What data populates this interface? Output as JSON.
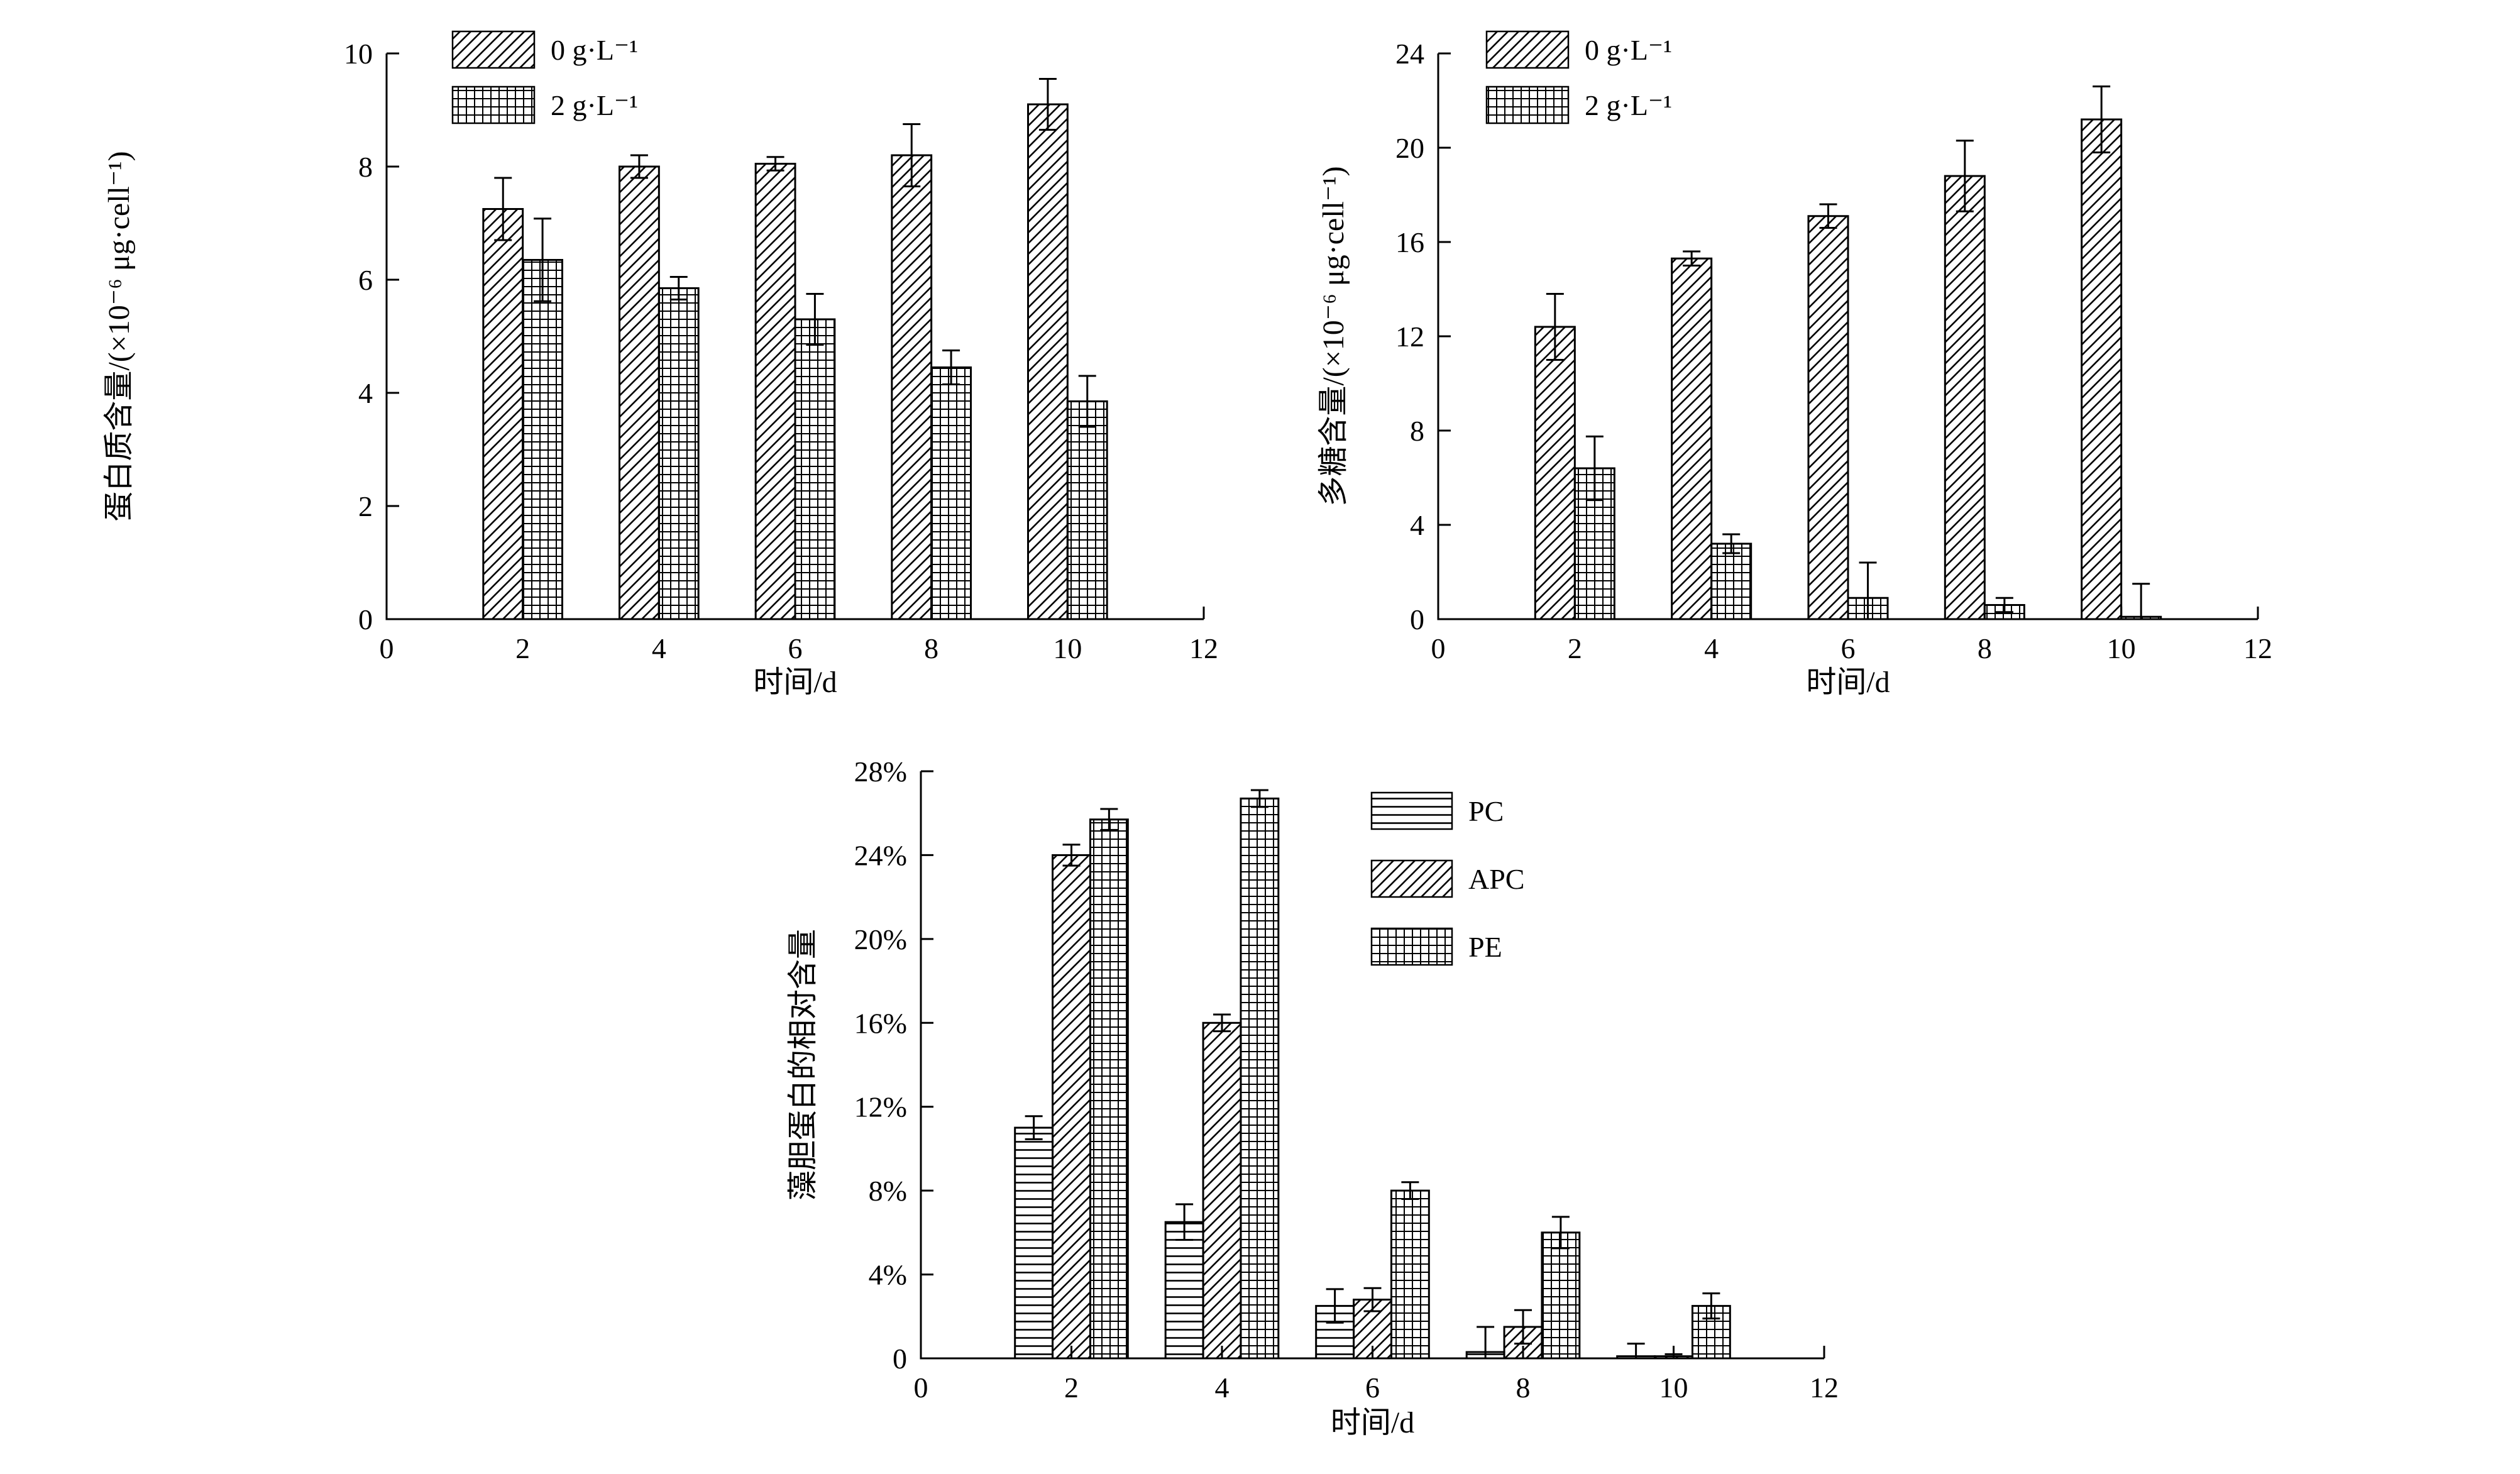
{
  "figure": {
    "background": "#ffffff"
  },
  "colors": {
    "axis": "#000000",
    "bar_fill": "#ffffff",
    "hatch": "#000000"
  },
  "chart_data": [
    {
      "type": "bar",
      "title": "",
      "xlabel": "时间/d",
      "ylabel": "蛋白质含量/(×10⁻⁶ μg·cell⁻¹)",
      "xlim": [
        0,
        12
      ],
      "ylim": [
        0,
        10
      ],
      "xticks": {
        "values": [
          0,
          2,
          4,
          6,
          8,
          10,
          12
        ],
        "labels": [
          "0",
          "2",
          "4",
          "6",
          "8",
          "10",
          "12"
        ]
      },
      "yticks": {
        "values": [
          0,
          2,
          4,
          6,
          8,
          10
        ],
        "labels": [
          "0",
          "2",
          "4",
          "6",
          "8",
          "10"
        ]
      },
      "categories": [
        2,
        4,
        6,
        8,
        10
      ],
      "grid": false,
      "legend_position": "top-left",
      "series": [
        {
          "name": "0 g·L⁻¹",
          "pattern": "diag",
          "values": [
            7.25,
            8.0,
            8.05,
            8.2,
            9.1
          ],
          "errors": [
            0.55,
            0.2,
            0.12,
            0.55,
            0.45
          ]
        },
        {
          "name": "2 g·L⁻¹",
          "pattern": "grid",
          "values": [
            6.35,
            5.85,
            5.3,
            4.45,
            3.85
          ],
          "errors": [
            0.73,
            0.2,
            0.45,
            0.3,
            0.45
          ]
        }
      ]
    },
    {
      "type": "bar",
      "title": "",
      "xlabel": "时间/d",
      "ylabel": "多糖含量/(×10⁻⁶ μg·cell⁻¹)",
      "xlim": [
        0,
        12
      ],
      "ylim": [
        0,
        24
      ],
      "xticks": {
        "values": [
          0,
          2,
          4,
          6,
          8,
          10,
          12
        ],
        "labels": [
          "0",
          "2",
          "4",
          "6",
          "8",
          "10",
          "12"
        ]
      },
      "yticks": {
        "values": [
          0,
          4,
          8,
          12,
          16,
          20,
          24
        ],
        "labels": [
          "0",
          "4",
          "8",
          "12",
          "16",
          "20",
          "24"
        ]
      },
      "categories": [
        2,
        4,
        6,
        8,
        10
      ],
      "grid": false,
      "legend_position": "top-left",
      "series": [
        {
          "name": "0 g·L⁻¹",
          "pattern": "diag",
          "values": [
            12.4,
            15.3,
            17.1,
            18.8,
            21.2
          ],
          "errors": [
            1.4,
            0.3,
            0.5,
            1.5,
            1.4
          ]
        },
        {
          "name": "2 g·L⁻¹",
          "pattern": "grid",
          "values": [
            6.4,
            3.2,
            0.9,
            0.6,
            0.1
          ],
          "errors": [
            1.35,
            0.4,
            1.5,
            0.3,
            1.4
          ]
        }
      ]
    },
    {
      "type": "bar",
      "title": "",
      "xlabel": "时间/d",
      "ylabel": "藻胆蛋白的相对含量",
      "xlim": [
        0,
        12
      ],
      "ylim": [
        0,
        28
      ],
      "xticks": {
        "values": [
          0,
          2,
          4,
          6,
          8,
          10,
          12
        ],
        "labels": [
          "0",
          "2",
          "4",
          "6",
          "8",
          "10",
          "12"
        ]
      },
      "yticks": {
        "values": [
          0,
          4,
          8,
          12,
          16,
          20,
          24,
          28
        ],
        "labels": [
          "0",
          "4%",
          "8%",
          "12%",
          "16%",
          "20%",
          "24%",
          "28%"
        ]
      },
      "categories": [
        2,
        4,
        6,
        8,
        10
      ],
      "grid": false,
      "legend_position": "top-right",
      "series": [
        {
          "name": "PC",
          "pattern": "hlines",
          "values": [
            11.0,
            6.5,
            2.5,
            0.3,
            0.1
          ],
          "errors": [
            0.55,
            0.85,
            0.8,
            1.2,
            0.6
          ]
        },
        {
          "name": "APC",
          "pattern": "diag",
          "values": [
            24.0,
            16.0,
            2.8,
            1.5,
            0.1
          ],
          "errors": [
            0.5,
            0.4,
            0.55,
            0.8,
            0.1
          ]
        },
        {
          "name": "PE",
          "pattern": "grid",
          "values": [
            25.7,
            26.7,
            8.0,
            6.0,
            2.5
          ],
          "errors": [
            0.5,
            0.4,
            0.4,
            0.75,
            0.6
          ]
        }
      ]
    }
  ]
}
